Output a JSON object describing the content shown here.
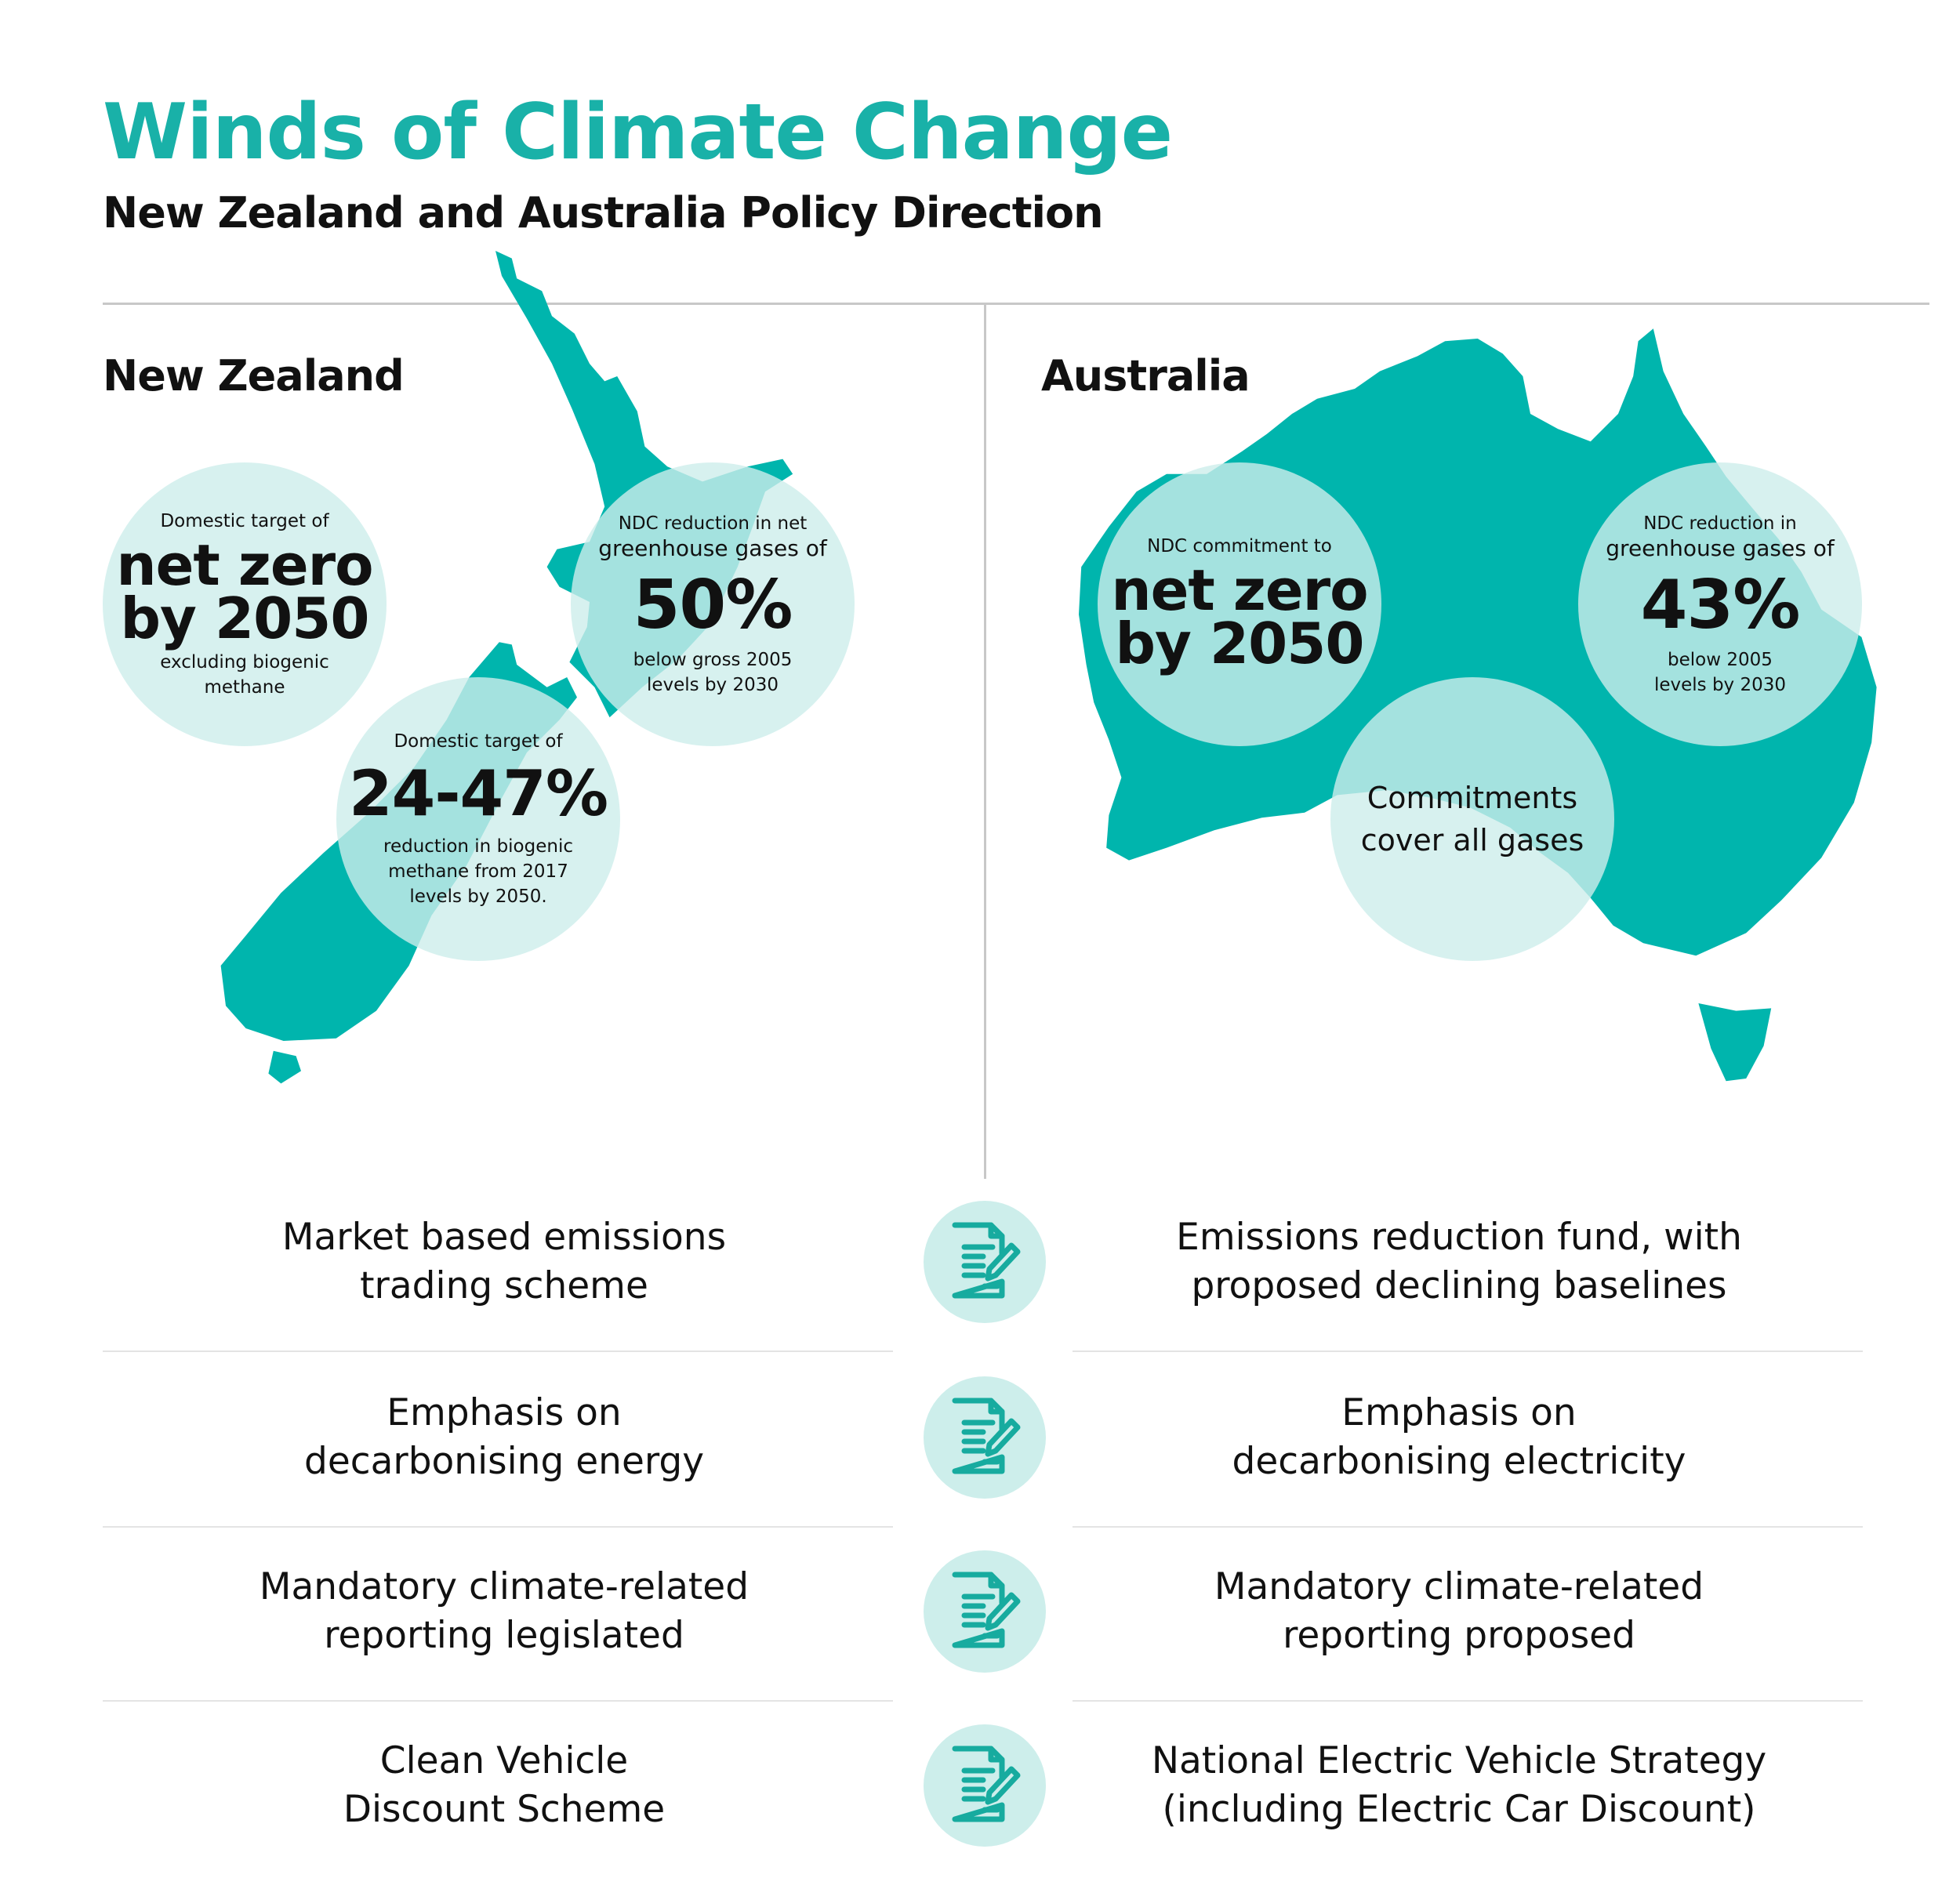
{
  "header": {
    "title": "Winds of Climate Change",
    "subtitle": "New Zealand and Australia Policy Direction"
  },
  "colors": {
    "accent": "#19b1a8",
    "map": "#00b5ad",
    "circle": "#cdeeeb"
  },
  "new_zealand": {
    "label": "New Zealand",
    "circles": [
      {
        "pre": "Domestic target of",
        "big1": "net zero",
        "big2": "by 2050",
        "post1": "excluding biogenic",
        "post2": "methane"
      },
      {
        "pre1": "NDC reduction in net",
        "pre2": "greenhouse gases of",
        "big": "50%",
        "post1": "below gross 2005",
        "post2": "levels by 2030"
      },
      {
        "pre": "Domestic target of",
        "big": "24-47%",
        "post1": "reduction in biogenic",
        "post2": "methane from 2017",
        "post3": "levels by 2050."
      }
    ]
  },
  "australia": {
    "label": "Australia",
    "circles": [
      {
        "pre": "NDC commitment to",
        "big1": "net zero",
        "big2": "by 2050"
      },
      {
        "pre1": "NDC reduction in",
        "pre2": "greenhouse gases of",
        "big": "43%",
        "post1": "below 2005",
        "post2": "levels by 2030"
      },
      {
        "line1": "Commitments",
        "line2": "cover all gases"
      }
    ]
  },
  "comparison": [
    {
      "nz1": "Market based emissions",
      "nz2": "trading scheme",
      "au1": "Emissions reduction fund, with",
      "au2": "proposed declining baselines",
      "icon": "document-pen-icon"
    },
    {
      "nz1": "Emphasis on",
      "nz2": "decarbonising energy",
      "au1": "Emphasis on",
      "au2": "decarbonising electricity",
      "icon": "document-pen-icon"
    },
    {
      "nz1": "Mandatory climate-related",
      "nz2": "reporting legislated",
      "au1": "Mandatory climate-related",
      "au2": "reporting proposed",
      "icon": "document-pen-icon"
    },
    {
      "nz1": "Clean Vehicle",
      "nz2": "Discount Scheme",
      "au1": "National Electric Vehicle Strategy",
      "au2": "(including Electric Car Discount)",
      "icon": "document-pen-icon"
    }
  ]
}
